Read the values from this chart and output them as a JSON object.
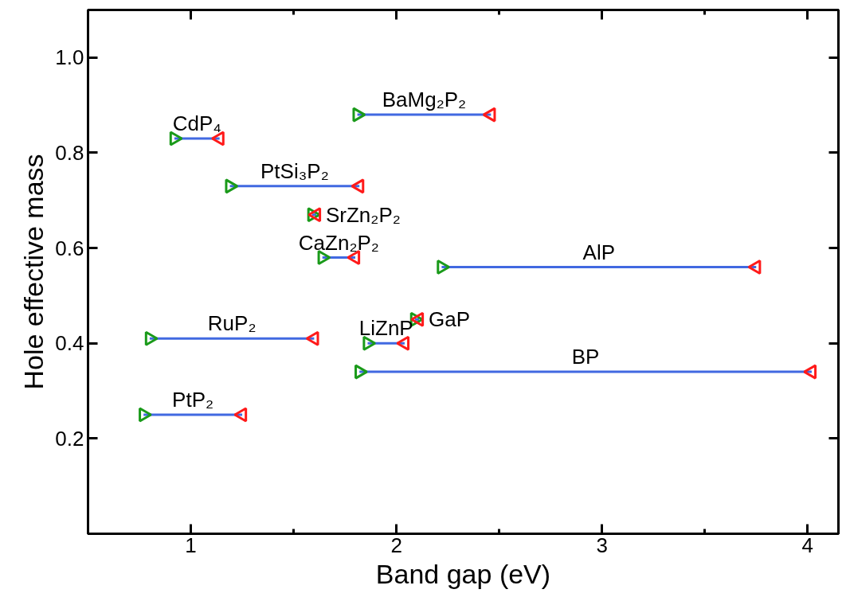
{
  "chart_data": {
    "type": "line",
    "xlabel": "Band gap (eV)",
    "ylabel": "Hole effective mass",
    "xlim": [
      0.5,
      4.15
    ],
    "ylim": [
      0,
      1.1
    ],
    "xticks": [
      1,
      {
        "value": 1.5,
        "label": null
      },
      2,
      {
        "value": 2.5,
        "label": null
      },
      3,
      {
        "value": 3.5,
        "label": null
      },
      4
    ],
    "yticks": [
      0.2,
      0.4,
      0.6,
      0.8,
      {
        "value": 1.0,
        "label": "1.0"
      }
    ],
    "grid": false,
    "series": [
      {
        "name": "CdP₄",
        "color": "#4169e1",
        "x": [
          0.92,
          1.14
        ],
        "values": [
          0.83,
          0.83
        ]
      },
      {
        "name": "BaMg₂P₂",
        "color": "#4169e1",
        "x": [
          1.81,
          2.46
        ],
        "values": [
          0.88,
          0.88
        ]
      },
      {
        "name": "PtSi₃P₂",
        "color": "#4169e1",
        "x": [
          1.19,
          1.82
        ],
        "values": [
          0.73,
          0.73
        ]
      },
      {
        "name": "SrZn₂P₂",
        "color": "#4169e1",
        "x": [
          1.59,
          1.61
        ],
        "values": [
          0.67,
          0.67
        ]
      },
      {
        "name": "CaZn₂P₂",
        "color": "#4169e1",
        "x": [
          1.64,
          1.8
        ],
        "values": [
          0.58,
          0.58
        ]
      },
      {
        "name": "AlP",
        "color": "#4169e1",
        "x": [
          2.22,
          3.75
        ],
        "values": [
          0.56,
          0.56
        ]
      },
      {
        "name": "RuP₂",
        "color": "#4169e1",
        "x": [
          0.8,
          1.6
        ],
        "values": [
          0.41,
          0.41
        ]
      },
      {
        "name": "LiZnP",
        "color": "#4169e1",
        "x": [
          1.86,
          2.04
        ],
        "values": [
          0.4,
          0.4
        ]
      },
      {
        "name": "GaP",
        "color": "#4169e1",
        "x": [
          2.09,
          2.11
        ],
        "values": [
          0.45,
          0.45
        ]
      },
      {
        "name": "BP",
        "color": "#4169e1",
        "x": [
          1.82,
          4.02
        ],
        "values": [
          0.34,
          0.34
        ]
      },
      {
        "name": "PtP₂",
        "color": "#4169e1",
        "x": [
          0.77,
          1.25
        ],
        "values": [
          0.25,
          0.25
        ]
      },
      {
        "type": "scatter",
        "marker": "triangle",
        "color": "#1a9a1a",
        "x": [
          0.92,
          1.81,
          1.19,
          1.59,
          1.64,
          2.22,
          0.8,
          1.86,
          2.09,
          1.82,
          0.77
        ],
        "values": [
          0.83,
          0.88,
          0.73,
          0.67,
          0.58,
          0.56,
          0.41,
          0.4,
          0.45,
          0.34,
          0.25
        ]
      },
      {
        "type": "scatter",
        "marker": "triangle",
        "color": "#ff1a1a",
        "x": [
          1.14,
          2.46,
          1.82,
          1.61,
          1.8,
          3.75,
          1.6,
          2.04,
          2.11,
          4.02,
          1.25
        ],
        "values": [
          0.83,
          0.88,
          0.73,
          0.67,
          0.58,
          0.56,
          0.41,
          0.4,
          0.45,
          0.34,
          0.25
        ]
      }
    ]
  }
}
